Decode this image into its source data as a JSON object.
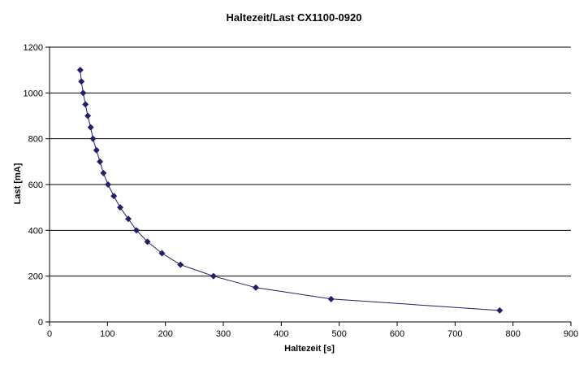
{
  "chart_data": {
    "type": "scatter",
    "title": "Haltezeit/Last CX1100-0920",
    "xlabel": "Haltezeit [s]",
    "ylabel": "Last [mA]",
    "xlim": [
      0,
      900
    ],
    "ylim": [
      0,
      1200
    ],
    "xticks": [
      "0",
      "100",
      "200",
      "300",
      "400",
      "500",
      "600",
      "700",
      "800",
      "900"
    ],
    "yticks": [
      "0",
      "200",
      "400",
      "600",
      "800",
      "1000",
      "1200"
    ],
    "grid": "horizontal",
    "legend": "none",
    "series": [
      {
        "color": "#1f1f6b",
        "marker": "diamond",
        "line": true,
        "points": [
          [
            53,
            1100
          ],
          [
            55,
            1050
          ],
          [
            58,
            1000
          ],
          [
            62,
            950
          ],
          [
            66,
            900
          ],
          [
            71,
            850
          ],
          [
            75,
            800
          ],
          [
            81,
            750
          ],
          [
            87,
            700
          ],
          [
            93,
            650
          ],
          [
            101,
            600
          ],
          [
            111,
            550
          ],
          [
            122,
            500
          ],
          [
            136,
            450
          ],
          [
            150,
            400
          ],
          [
            169,
            350
          ],
          [
            194,
            300
          ],
          [
            226,
            250
          ],
          [
            283,
            200
          ],
          [
            356,
            150
          ],
          [
            486,
            100
          ],
          [
            777,
            50
          ]
        ]
      }
    ]
  }
}
